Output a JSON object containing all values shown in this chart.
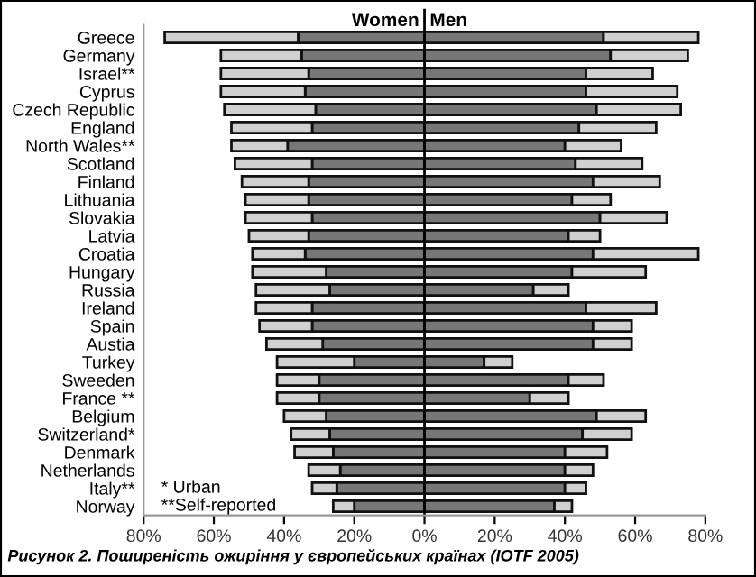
{
  "chart_data": {
    "type": "bar",
    "orientation": "horizontal",
    "stacked": true,
    "categories": [
      "Greece",
      "Germany",
      "Israel**",
      "Cyprus",
      "Czech Republic",
      "England",
      "North Wales**",
      "Scotland",
      "Finland",
      "Lithuania",
      "Slovakia",
      "Latvia",
      "Croatia",
      "Hungary",
      "Russia",
      "Ireland",
      "Spain",
      "Austia",
      "Turkey",
      "Sweeden",
      "France **",
      "Belgium",
      "Switzerland*",
      "Denmark",
      "Netherlands",
      "Italy**",
      "Norway"
    ],
    "series": [
      {
        "color": "#777777",
        "values": [
          -36,
          -35,
          -33,
          -34,
          -31,
          -32,
          -39,
          -32,
          -33,
          -33,
          -32,
          -33,
          -34,
          -28,
          -27,
          -32,
          -32,
          -29,
          -20,
          -30,
          -30,
          -28,
          -27,
          -26,
          -24,
          -25,
          -20
        ]
      },
      {
        "color": "#d0d0d0",
        "values": [
          -38,
          -23,
          -25,
          -24,
          -26,
          -23,
          -16,
          -22,
          -19,
          -18,
          -19,
          -17,
          -15,
          -21,
          -21,
          -16,
          -15,
          -16,
          -22,
          -12,
          -12,
          -12,
          -11,
          -11,
          -9,
          -7,
          -6
        ]
      },
      {
        "color": "#777777",
        "values": [
          51,
          53,
          46,
          46,
          49,
          44,
          40,
          43,
          48,
          42,
          50,
          41,
          48,
          42,
          31,
          46,
          48,
          48,
          17,
          41,
          30,
          49,
          45,
          40,
          40,
          40,
          37
        ]
      },
      {
        "color": "#d0d0d0",
        "values": [
          27,
          22,
          19,
          26,
          24,
          22,
          16,
          19,
          19,
          11,
          19,
          9,
          30,
          21,
          10,
          20,
          11,
          11,
          8,
          10,
          11,
          14,
          14,
          12,
          8,
          6,
          5
        ]
      }
    ],
    "xlim": [
      -80,
      80
    ],
    "xticks": [
      {
        "value": -80,
        "label": "80%"
      },
      {
        "value": -60,
        "label": "60%"
      },
      {
        "value": -40,
        "label": "40%"
      },
      {
        "value": -20,
        "label": "20%"
      },
      {
        "value": 0,
        "label": "0%"
      },
      {
        "value": 20,
        "label": "20%"
      },
      {
        "value": 40,
        "label": "40%"
      },
      {
        "value": 60,
        "label": "60%"
      },
      {
        "value": 80,
        "label": "80%"
      }
    ],
    "ref_lines": [
      {
        "axis": "x",
        "value": 0,
        "color": "#000000"
      }
    ],
    "grid": false,
    "legend": false,
    "annotations": [
      "Women",
      "Men",
      "* Urban",
      "**Self-reported",
      "Рисунок 2. Поширеність ожиріння у європейських країнах (IOTF 2005)"
    ]
  }
}
